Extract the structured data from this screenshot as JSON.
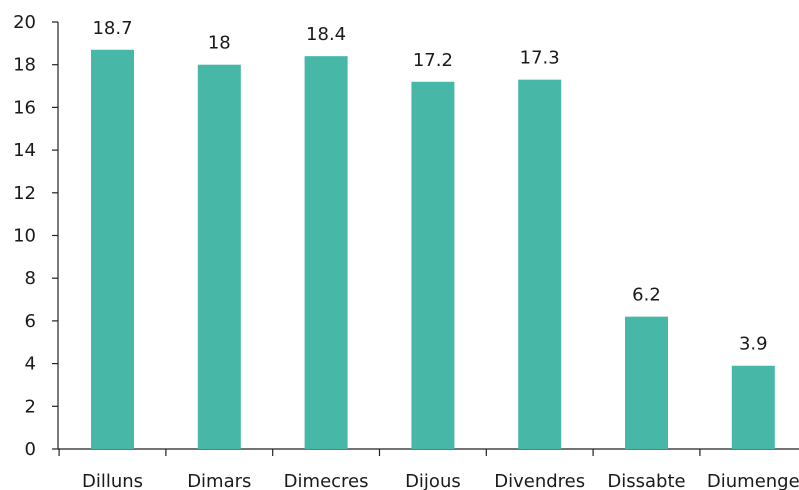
{
  "chart_data": {
    "type": "bar",
    "categories": [
      "Dilluns",
      "Dimars",
      "Dimecres",
      "Dijous",
      "Divendres",
      "Dissabte",
      "Diumenge"
    ],
    "values": [
      18.7,
      18,
      18.4,
      17.2,
      17.3,
      6.2,
      3.9
    ],
    "data_labels": [
      "18.7",
      "18",
      "18.4",
      "17.2",
      "17.3",
      "6.2",
      "3.9"
    ],
    "ylim": [
      0,
      20
    ],
    "yticks": [
      0,
      2,
      4,
      6,
      8,
      10,
      12,
      14,
      16,
      18,
      20
    ],
    "grid": false,
    "legend": "none",
    "title": "",
    "xlabel": "",
    "ylabel": "",
    "colors": {
      "bar": "#47b8a8",
      "axis": "#222222",
      "text": "#1a1a1a"
    }
  }
}
